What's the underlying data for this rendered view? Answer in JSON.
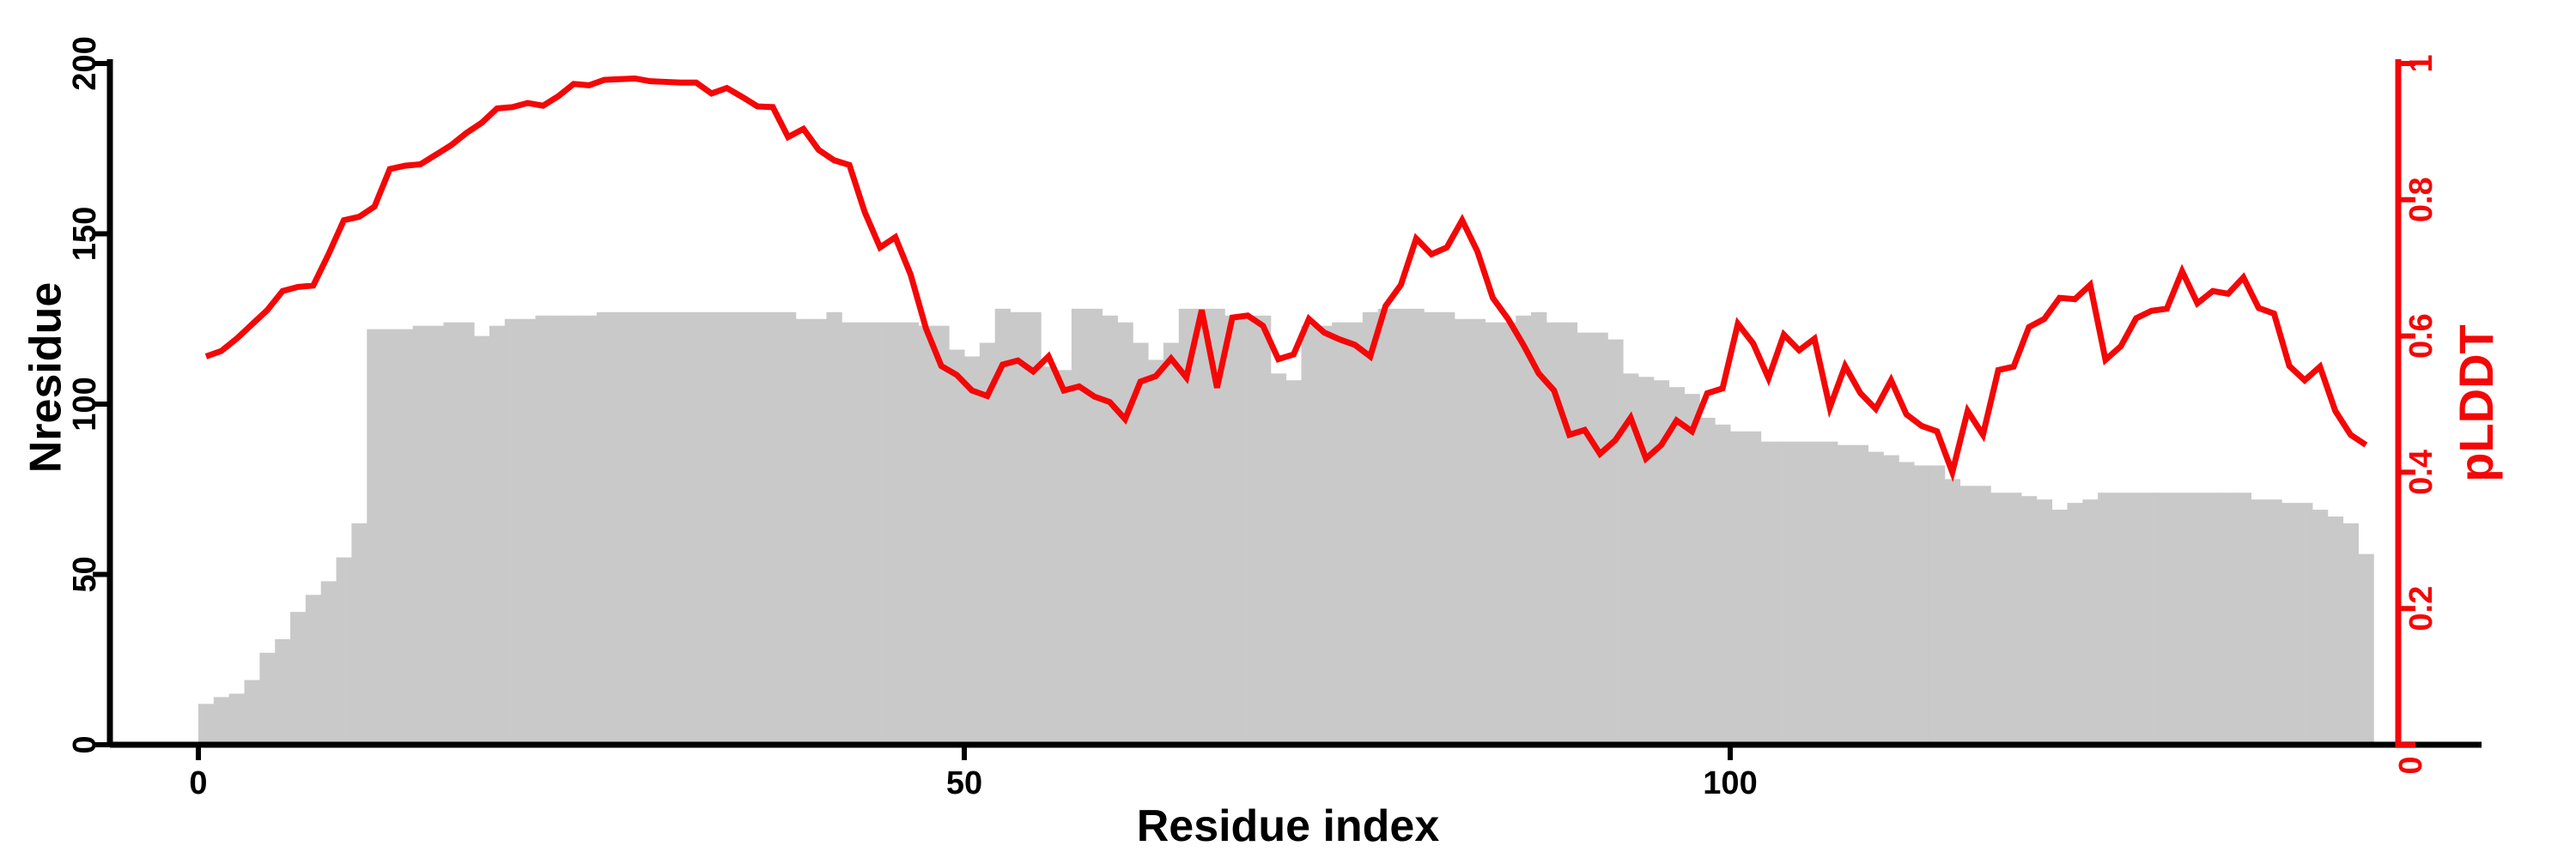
{
  "chart_data": {
    "type": "bar",
    "subtype": "dual-axis bar+line",
    "title": "",
    "xlabel": "Residue index",
    "ylabel_left": "Nresidue",
    "ylabel_right": "pLDDT",
    "x_ticks": [
      0,
      50,
      100
    ],
    "left_ticks": [
      0,
      50,
      100,
      150,
      200
    ],
    "right_ticks": [
      0,
      0.2,
      0.4,
      0.6,
      0.8,
      1
    ],
    "left_ylim": [
      0,
      200
    ],
    "right_ylim": [
      0,
      1
    ],
    "x_range": [
      0,
      142
    ],
    "n_points": 142,
    "grid": false,
    "legend": "none",
    "colors": {
      "bar": "#c9c9c9",
      "line": "#f40707",
      "axis": "#000000",
      "background": "#ffffff"
    },
    "series": [
      {
        "name": "Nresidue",
        "type": "bar",
        "axis": "left",
        "color": "#c9c9c9",
        "values": [
          12,
          14,
          15,
          19,
          27,
          31,
          39,
          44,
          48,
          55,
          65,
          122,
          122,
          122,
          123,
          123,
          124,
          124,
          120,
          123,
          125,
          125,
          126,
          126,
          126,
          126,
          127,
          127,
          127,
          127,
          127,
          127,
          127,
          127,
          127,
          127,
          127,
          127,
          127,
          125,
          125,
          127,
          124,
          124,
          124,
          124,
          124,
          123,
          123,
          116,
          114,
          118,
          128,
          127,
          127,
          111,
          110,
          128,
          128,
          126,
          124,
          118,
          113,
          118,
          128,
          128,
          128,
          126,
          126,
          126,
          109,
          107,
          123,
          123,
          124,
          124,
          127,
          128,
          128,
          128,
          127,
          127,
          125,
          125,
          124,
          124,
          126,
          127,
          124,
          124,
          121,
          121,
          119,
          109,
          108,
          107,
          105,
          103,
          96,
          94,
          92,
          92,
          89,
          89,
          89,
          89,
          89,
          88,
          88,
          86,
          85,
          83,
          82,
          82,
          78,
          76,
          76,
          74,
          74,
          73,
          72,
          69,
          71,
          72,
          74,
          74,
          74,
          74,
          74,
          74,
          74,
          74,
          74,
          74,
          72,
          72,
          71,
          71,
          69,
          67,
          65,
          56
        ]
      },
      {
        "name": "pLDDT",
        "type": "line",
        "axis": "right",
        "color": "#f40707",
        "values": [
          0.57,
          0.578,
          0.596,
          0.617,
          0.638,
          0.666,
          0.672,
          0.674,
          0.72,
          0.77,
          0.775,
          0.79,
          0.845,
          0.85,
          0.852,
          0.866,
          0.88,
          0.898,
          0.913,
          0.934,
          0.936,
          0.942,
          0.938,
          0.952,
          0.97,
          0.968,
          0.976,
          0.977,
          0.978,
          0.974,
          0.973,
          0.972,
          0.972,
          0.956,
          0.964,
          0.951,
          0.937,
          0.936,
          0.892,
          0.904,
          0.873,
          0.858,
          0.851,
          0.782,
          0.73,
          0.745,
          0.69,
          0.611,
          0.556,
          0.543,
          0.52,
          0.512,
          0.558,
          0.564,
          0.548,
          0.57,
          0.52,
          0.526,
          0.511,
          0.503,
          0.478,
          0.533,
          0.541,
          0.567,
          0.539,
          0.638,
          0.524,
          0.627,
          0.63,
          0.615,
          0.566,
          0.573,
          0.625,
          0.605,
          0.595,
          0.587,
          0.57,
          0.644,
          0.675,
          0.743,
          0.72,
          0.73,
          0.77,
          0.724,
          0.656,
          0.625,
          0.587,
          0.545,
          0.52,
          0.455,
          0.462,
          0.427,
          0.447,
          0.48,
          0.42,
          0.44,
          0.476,
          0.46,
          0.516,
          0.523,
          0.618,
          0.589,
          0.538,
          0.602,
          0.579,
          0.596,
          0.495,
          0.556,
          0.516,
          0.493,
          0.535,
          0.485,
          0.468,
          0.46,
          0.4,
          0.49,
          0.455,
          0.55,
          0.555,
          0.613,
          0.625,
          0.656,
          0.654,
          0.675,
          0.565,
          0.585,
          0.626,
          0.637,
          0.64,
          0.695,
          0.648,
          0.666,
          0.662,
          0.686,
          0.641,
          0.633,
          0.556,
          0.535,
          0.555,
          0.49,
          0.455,
          0.44
        ]
      }
    ]
  }
}
